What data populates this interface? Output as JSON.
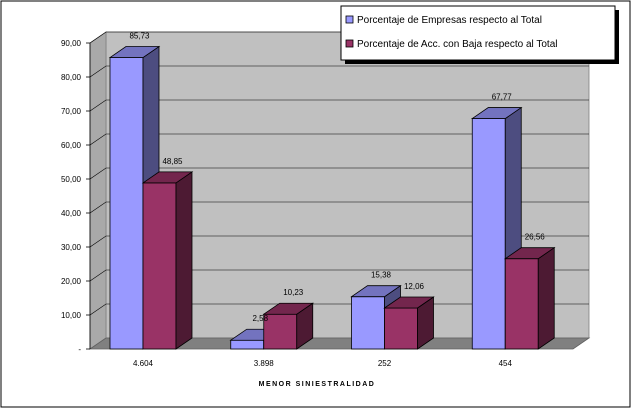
{
  "chart_data": {
    "type": "bar",
    "categories": [
      "4.604",
      "3.898",
      "252",
      "454"
    ],
    "xlabel": "MENOR SINIESTRALIDAD",
    "ylabel": "",
    "title": "",
    "ylim": [
      0,
      90
    ],
    "yticks": [
      "-",
      "10,00",
      "20,00",
      "30,00",
      "40,00",
      "50,00",
      "60,00",
      "70,00",
      "80,00",
      "90,00"
    ],
    "grid": true,
    "legend_position": "top-right",
    "series": [
      {
        "name": "Porcentaje de Empresas respecto al Total",
        "values": [
          85.73,
          2.58,
          15.38,
          67.77
        ],
        "labels": [
          "85,73",
          "2,58",
          "15,38",
          "67,77"
        ],
        "color": "#9999ff"
      },
      {
        "name": "Porcentaje de Acc. con Baja respecto al Total",
        "values": [
          48.85,
          10.23,
          12.06,
          26.56
        ],
        "labels": [
          "48,85",
          "10,23",
          "12,06",
          "26,56"
        ],
        "color": "#993366"
      }
    ]
  }
}
